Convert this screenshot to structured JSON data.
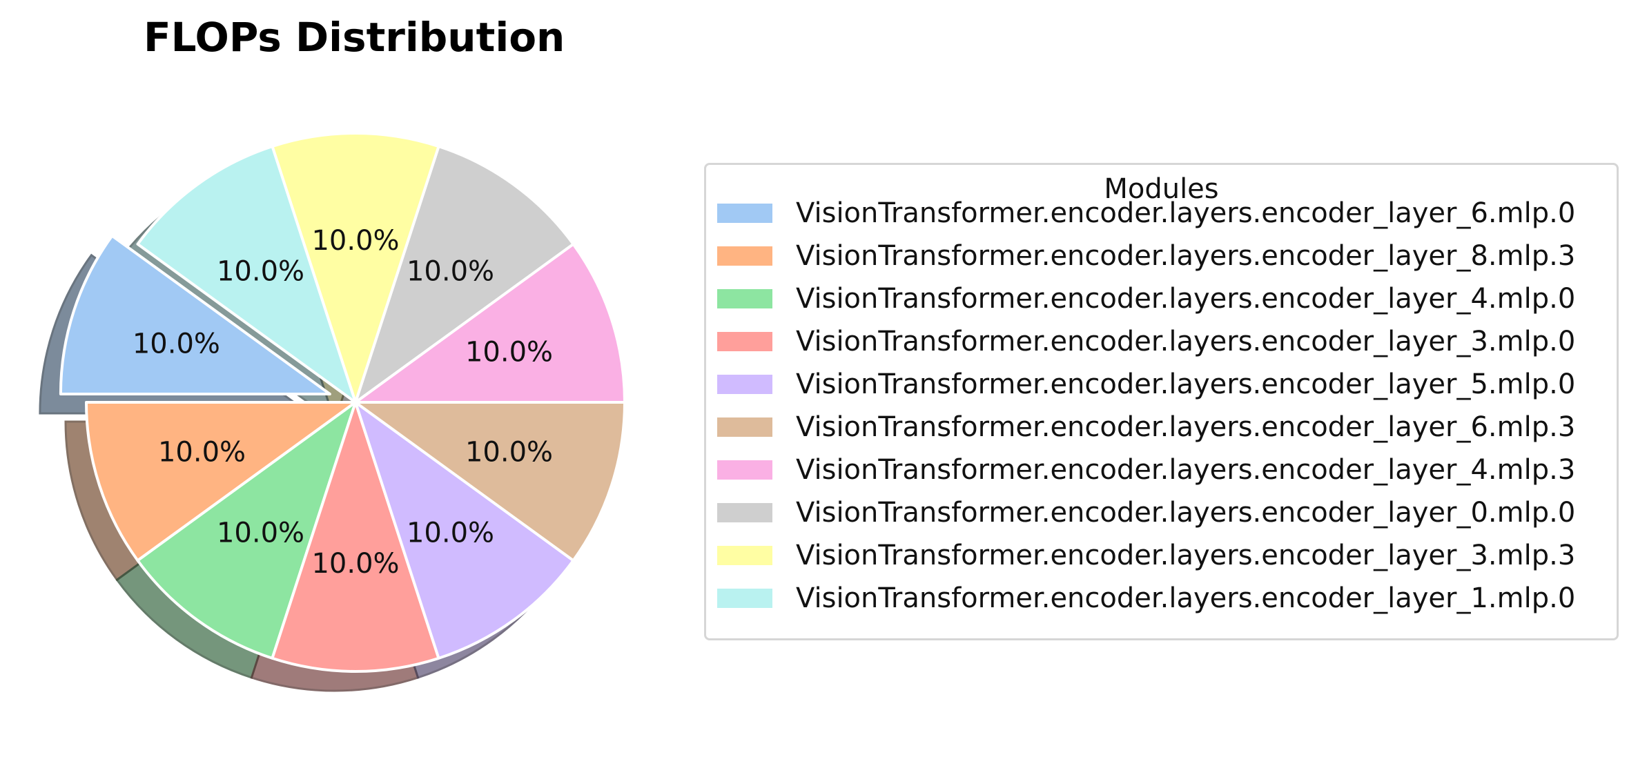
{
  "chart_data": {
    "type": "pie",
    "title": "FLOPs Distribution",
    "legend_title": "Modules",
    "legend_placement": "right",
    "exploded": "VisionTransformer.encoder.layers.encoder_layer_6.mlp.0",
    "shadow": true,
    "slices": [
      {
        "label": "VisionTransformer.encoder.layers.encoder_layer_6.mlp.0",
        "value": 10.0,
        "pct_label": "10.0%",
        "color": "#a1c9f4"
      },
      {
        "label": "VisionTransformer.encoder.layers.encoder_layer_8.mlp.3",
        "value": 10.0,
        "pct_label": "10.0%",
        "color": "#ffb482"
      },
      {
        "label": "VisionTransformer.encoder.layers.encoder_layer_4.mlp.0",
        "value": 10.0,
        "pct_label": "10.0%",
        "color": "#8de5a1"
      },
      {
        "label": "VisionTransformer.encoder.layers.encoder_layer_3.mlp.0",
        "value": 10.0,
        "pct_label": "10.0%",
        "color": "#ff9f9b"
      },
      {
        "label": "VisionTransformer.encoder.layers.encoder_layer_5.mlp.0",
        "value": 10.0,
        "pct_label": "10.0%",
        "color": "#d0bbff"
      },
      {
        "label": "VisionTransformer.encoder.layers.encoder_layer_6.mlp.3",
        "value": 10.0,
        "pct_label": "10.0%",
        "color": "#debb9b"
      },
      {
        "label": "VisionTransformer.encoder.layers.encoder_layer_4.mlp.3",
        "value": 10.0,
        "pct_label": "10.0%",
        "color": "#fab0e4"
      },
      {
        "label": "VisionTransformer.encoder.layers.encoder_layer_0.mlp.0",
        "value": 10.0,
        "pct_label": "10.0%",
        "color": "#cfcfcf"
      },
      {
        "label": "VisionTransformer.encoder.layers.encoder_layer_3.mlp.3",
        "value": 10.0,
        "pct_label": "10.0%",
        "color": "#fffea3"
      },
      {
        "label": "VisionTransformer.encoder.layers.encoder_layer_1.mlp.0",
        "value": 10.0,
        "pct_label": "10.0%",
        "color": "#b9f2f0"
      }
    ]
  }
}
